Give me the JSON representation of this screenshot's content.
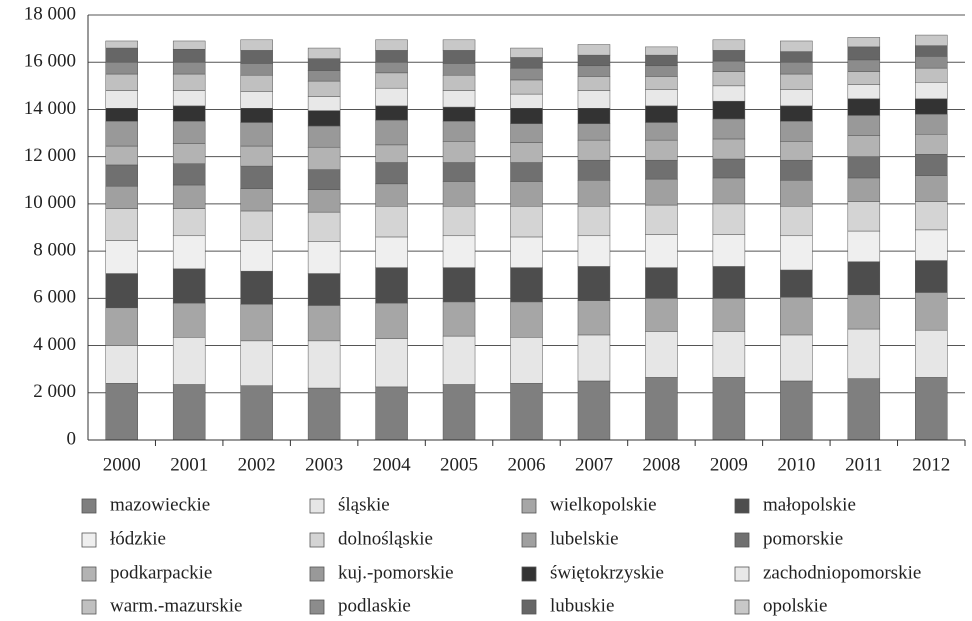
{
  "chart_data": {
    "type": "stacked_bar",
    "categories": [
      "2000",
      "2001",
      "2002",
      "2003",
      "2004",
      "2005",
      "2006",
      "2007",
      "2008",
      "2009",
      "2010",
      "2011",
      "2012"
    ],
    "ylim": [
      0,
      18000
    ],
    "yticks": [
      0,
      {
        "value": 2000,
        "label": "2 000"
      },
      {
        "value": 4000,
        "label": "4 000"
      },
      {
        "value": 6000,
        "label": "6 000"
      },
      {
        "value": 8000,
        "label": "8 000"
      },
      {
        "value": 10000,
        "label": "10 000"
      },
      {
        "value": 12000,
        "label": "12 000"
      },
      {
        "value": 14000,
        "label": "14 000"
      },
      {
        "value": 16000,
        "label": "16 000"
      },
      {
        "value": 18000,
        "label": "18 000"
      }
    ],
    "grid": true,
    "legend": "bottom",
    "series": [
      {
        "name": "mazowieckie",
        "color": "#7f7f7f",
        "values": [
          2400,
          2350,
          2300,
          2200,
          2250,
          2350,
          2400,
          2500,
          2650,
          2650,
          2500,
          2600,
          2650
        ]
      },
      {
        "name": "śląskie",
        "color": "#e6e6e6",
        "values": [
          1600,
          2000,
          1900,
          2000,
          2050,
          2050,
          1950,
          1950,
          1950,
          1950,
          1950,
          2100,
          2000
        ]
      },
      {
        "name": "wielkopolskie",
        "color": "#a6a6a6",
        "values": [
          1600,
          1450,
          1550,
          1500,
          1500,
          1450,
          1500,
          1450,
          1400,
          1400,
          1600,
          1450,
          1600
        ]
      },
      {
        "name": "małopolskie",
        "color": "#4d4d4d",
        "values": [
          1450,
          1450,
          1400,
          1350,
          1500,
          1450,
          1450,
          1450,
          1300,
          1350,
          1150,
          1400,
          1350
        ]
      },
      {
        "name": "łódzkie",
        "color": "#efefef",
        "values": [
          1400,
          1400,
          1300,
          1350,
          1300,
          1350,
          1300,
          1300,
          1400,
          1350,
          1450,
          1300,
          1300
        ]
      },
      {
        "name": "dolnośląskie",
        "color": "#d4d4d4",
        "values": [
          1350,
          1150,
          1250,
          1250,
          1300,
          1250,
          1300,
          1250,
          1250,
          1300,
          1250,
          1250,
          1200
        ]
      },
      {
        "name": "lubelskie",
        "color": "#a0a0a0",
        "values": [
          950,
          1000,
          950,
          950,
          950,
          1050,
          1050,
          1100,
          1100,
          1100,
          1100,
          1000,
          1100
        ]
      },
      {
        "name": "pomorskie",
        "color": "#707070",
        "values": [
          900,
          900,
          950,
          850,
          900,
          800,
          800,
          850,
          800,
          800,
          850,
          900,
          900
        ]
      },
      {
        "name": "podkarpackie",
        "color": "#b3b3b3",
        "values": [
          800,
          850,
          850,
          950,
          750,
          900,
          850,
          850,
          850,
          850,
          800,
          900,
          850
        ]
      },
      {
        "name": "kuj.-pomorskie",
        "color": "#999999",
        "values": [
          1050,
          950,
          1000,
          900,
          1050,
          850,
          800,
          700,
          750,
          850,
          850,
          850,
          850
        ]
      },
      {
        "name": "świętokrzyskie",
        "color": "#333333",
        "values": [
          550,
          650,
          600,
          650,
          600,
          600,
          650,
          650,
          700,
          750,
          650,
          700,
          650
        ]
      },
      {
        "name": "zachodniopomorskie",
        "color": "#e8e8e8",
        "values": [
          750,
          650,
          700,
          600,
          750,
          700,
          600,
          750,
          700,
          650,
          700,
          600,
          700
        ]
      },
      {
        "name": "warm.-mazurskie",
        "color": "#c0c0c0",
        "values": [
          700,
          700,
          700,
          650,
          650,
          650,
          600,
          600,
          550,
          600,
          650,
          550,
          600
        ]
      },
      {
        "name": "podlaskie",
        "color": "#8c8c8c",
        "values": [
          500,
          500,
          500,
          450,
          450,
          500,
          500,
          450,
          450,
          450,
          500,
          500,
          500
        ]
      },
      {
        "name": "lubuskie",
        "color": "#666666",
        "values": [
          600,
          550,
          550,
          500,
          500,
          550,
          450,
          450,
          450,
          450,
          450,
          550,
          450
        ]
      },
      {
        "name": "opolskie",
        "color": "#c8c8c8",
        "values": [
          300,
          350,
          450,
          450,
          450,
          450,
          400,
          450,
          350,
          450,
          450,
          400,
          450
        ]
      }
    ]
  }
}
